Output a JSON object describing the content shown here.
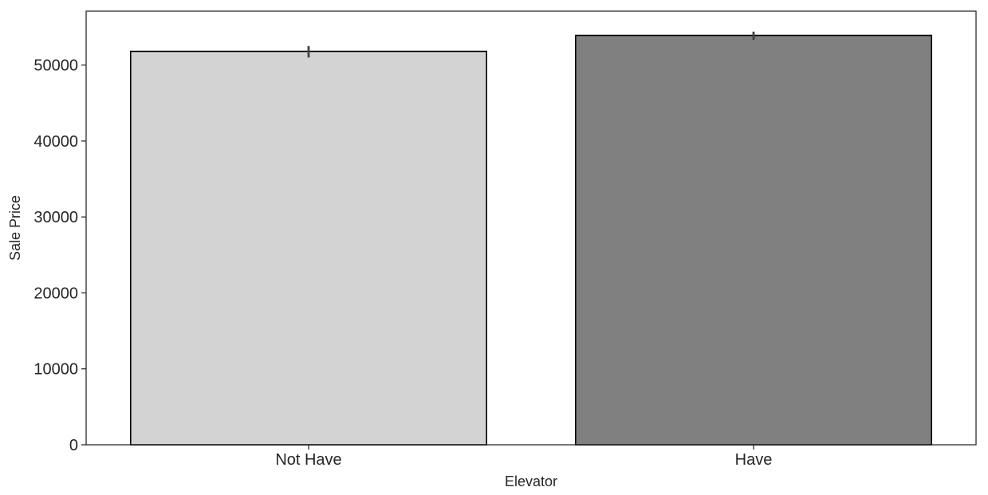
{
  "chart_data": {
    "type": "bar",
    "title": "",
    "xlabel": "Elevator",
    "ylabel": "Sale Price",
    "categories": [
      "Not Have",
      "Have"
    ],
    "values": [
      51800,
      53900
    ],
    "error_bars": [
      {
        "low": 51000,
        "high": 52500
      },
      {
        "low": 53300,
        "high": 54400
      }
    ],
    "bar_colors": [
      "#d3d3d3",
      "#808080"
    ],
    "edge_color": "#000000",
    "errorbar_color": "#424242",
    "ylim": [
      0,
      57100
    ],
    "yticks": [
      0,
      10000,
      20000,
      30000,
      40000,
      50000
    ],
    "ytick_labels": [
      "0",
      "10000",
      "20000",
      "30000",
      "40000",
      "50000"
    ],
    "grid": false,
    "legend": false
  }
}
